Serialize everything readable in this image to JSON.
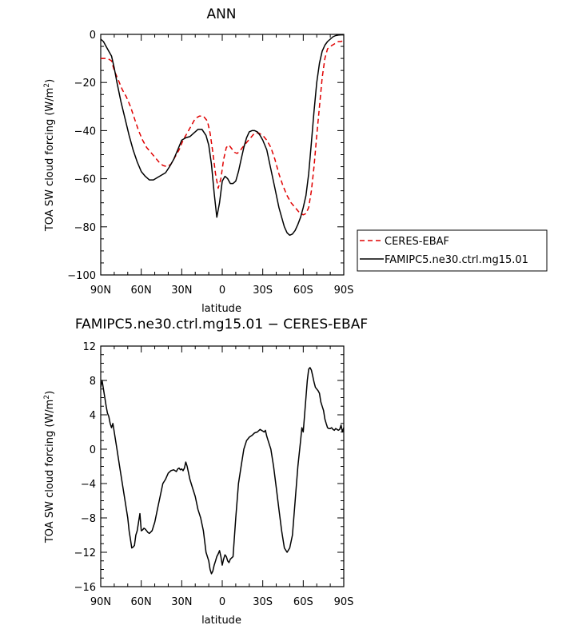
{
  "chart_data": [
    {
      "type": "line",
      "title": "ANN",
      "xlabel": "latitude",
      "ylabel": "TOA SW cloud forcing (W/m²)",
      "ylabel_main": "TOA SW cloud forcing (W/m",
      "ylabel_sup": "2",
      "ylabel_end": ")",
      "xlim": [
        90,
        -90
      ],
      "ylim": [
        -100,
        0
      ],
      "xticks": [
        90,
        60,
        30,
        0,
        -30,
        -60,
        -90
      ],
      "xtick_labels": [
        "90N",
        "60N",
        "30N",
        "0",
        "30S",
        "60S",
        "90S"
      ],
      "yticks": [
        0,
        -20,
        -40,
        -60,
        -80,
        -100
      ],
      "ytick_labels": [
        "0",
        "−20",
        "−40",
        "−60",
        "−80",
        "−100"
      ],
      "legend": {
        "placement": "right",
        "boxed": true
      },
      "series": [
        {
          "name": "CERES-EBAF",
          "color": "#e00000",
          "dash": "dashed",
          "x": [
            90,
            88,
            85,
            82,
            80,
            77,
            74,
            71,
            68,
            65,
            62,
            59,
            56,
            53,
            50,
            47,
            44,
            41,
            38,
            35,
            32,
            29,
            26,
            23,
            20,
            17,
            14,
            11,
            9,
            7,
            5,
            3,
            1,
            -1,
            -3,
            -5,
            -7,
            -9,
            -11,
            -13,
            -15,
            -18,
            -21,
            -24,
            -27,
            -30,
            -33,
            -36,
            -39,
            -42,
            -45,
            -48,
            -51,
            -54,
            -57,
            -60,
            -62,
            -64,
            -66,
            -68,
            -70,
            -72,
            -74,
            -76,
            -78,
            -80,
            -83,
            -86,
            -88,
            -90
          ],
          "y": [
            -10,
            -10,
            -10,
            -11,
            -15,
            -19,
            -23,
            -26,
            -30,
            -35,
            -40,
            -44,
            -47,
            -49,
            -51,
            -53,
            -54.5,
            -55,
            -54,
            -51,
            -48,
            -44,
            -41,
            -38,
            -35,
            -34,
            -34,
            -36,
            -41,
            -49,
            -58,
            -64,
            -60,
            -52,
            -47,
            -46,
            -47.5,
            -49,
            -49.5,
            -48.5,
            -47,
            -45,
            -43,
            -41,
            -41,
            -42,
            -44,
            -47,
            -52,
            -58,
            -63,
            -67,
            -70,
            -72,
            -74,
            -75,
            -74.5,
            -72,
            -65,
            -55,
            -42,
            -30,
            -18,
            -10,
            -6,
            -5,
            -4,
            -3,
            -3,
            -2.5
          ]
        },
        {
          "name": "FAMIPC5.ne30.ctrl.mg15.01",
          "color": "#000000",
          "dash": "solid",
          "x": [
            90,
            88,
            85,
            82,
            80,
            78,
            75,
            72,
            69,
            66,
            63,
            60,
            57,
            54,
            51,
            48,
            45,
            42,
            39,
            36,
            33,
            30,
            27,
            24,
            21,
            18,
            15,
            12,
            10,
            8,
            6,
            4,
            2,
            0,
            -2,
            -4,
            -6,
            -8,
            -10,
            -12,
            -14,
            -16,
            -18,
            -20,
            -22,
            -24,
            -26,
            -28,
            -30,
            -33,
            -36,
            -39,
            -42,
            -44,
            -46,
            -48,
            -50,
            -52,
            -54,
            -56,
            -58,
            -60,
            -62,
            -64,
            -66,
            -68,
            -70,
            -72,
            -74,
            -76,
            -78,
            -80,
            -82,
            -84,
            -86,
            -88,
            -90
          ],
          "y": [
            -2,
            -3,
            -6,
            -9,
            -14,
            -20,
            -28,
            -35,
            -42,
            -48,
            -53,
            -57,
            -59,
            -60.5,
            -60.5,
            -59.5,
            -58.5,
            -57.5,
            -55,
            -52,
            -48,
            -44,
            -43,
            -42.5,
            -41,
            -39.5,
            -39.5,
            -42,
            -46,
            -54,
            -66,
            -76,
            -70,
            -61,
            -59,
            -60,
            -62,
            -62,
            -61,
            -57,
            -52,
            -47,
            -43,
            -40.5,
            -40,
            -40,
            -40.5,
            -42,
            -44,
            -48,
            -56,
            -64,
            -72,
            -76,
            -80,
            -82.5,
            -83.5,
            -83,
            -81.5,
            -79,
            -76,
            -72,
            -67,
            -58,
            -45,
            -32,
            -20,
            -12,
            -7,
            -4.5,
            -3,
            -2,
            -1,
            -0.5,
            -0.3,
            -0.2,
            -0.2
          ]
        }
      ]
    },
    {
      "type": "line",
      "title": "FAMIPC5.ne30.ctrl.mg15.01 − CERES-EBAF",
      "xlabel": "latitude",
      "ylabel": "TOA SW cloud forcing (W/m²)",
      "ylabel_main": "TOA SW cloud forcing (W/m",
      "ylabel_sup": "2",
      "ylabel_end": ")",
      "xlim": [
        90,
        -90
      ],
      "ylim": [
        -16,
        12
      ],
      "xticks": [
        90,
        60,
        30,
        0,
        -30,
        -60,
        -90
      ],
      "xtick_labels": [
        "90N",
        "60N",
        "30N",
        "0",
        "30S",
        "60S",
        "90S"
      ],
      "yticks": [
        12,
        8,
        4,
        0,
        -4,
        -8,
        -12,
        -16
      ],
      "ytick_labels": [
        "12",
        "8",
        "4",
        "0",
        "−4",
        "−8",
        "−12",
        "−16"
      ],
      "series": [
        {
          "name": "",
          "color": "#000000",
          "dash": "solid",
          "x": [
            90,
            89,
            88,
            87,
            86,
            85,
            84,
            83,
            82,
            81,
            80,
            79,
            78,
            76,
            74,
            72,
            70,
            69,
            68,
            67,
            66,
            65,
            64,
            63,
            62,
            61,
            60,
            59,
            58,
            57,
            56,
            55,
            54,
            52,
            50,
            48,
            46,
            44,
            42,
            40,
            38,
            36,
            34,
            33,
            32,
            31,
            30,
            29,
            28,
            27,
            26,
            24,
            22,
            20,
            18,
            16,
            14,
            12,
            10,
            9,
            8,
            7,
            6,
            5,
            4,
            3,
            2,
            1,
            0,
            -1,
            -2,
            -3,
            -4,
            -5,
            -6,
            -8,
            -10,
            -12,
            -14,
            -16,
            -18,
            -20,
            -22,
            -24,
            -26,
            -28,
            -30,
            -31,
            -32,
            -33,
            -34,
            -36,
            -38,
            -40,
            -42,
            -44,
            -46,
            -48,
            -50,
            -52,
            -54,
            -56,
            -58,
            -59,
            -60,
            -61,
            -62,
            -63,
            -64,
            -65,
            -66,
            -67,
            -68,
            -69,
            -70,
            -71,
            -72,
            -73,
            -74,
            -75,
            -76,
            -77,
            -78,
            -79,
            -80,
            -81,
            -82,
            -83,
            -84,
            -85,
            -86,
            -87,
            -88,
            -89,
            -90
          ],
          "y": [
            7.2,
            8.0,
            7.0,
            6.0,
            5.0,
            4.2,
            3.8,
            3.0,
            2.5,
            3.0,
            2.0,
            1.0,
            0,
            -2,
            -4,
            -6,
            -8,
            -9.5,
            -10.5,
            -11.5,
            -11.4,
            -11.2,
            -10,
            -9.5,
            -8.5,
            -7.5,
            -9.5,
            -9.4,
            -9.2,
            -9.3,
            -9.5,
            -9.7,
            -9.8,
            -9.5,
            -8.5,
            -7.0,
            -5.5,
            -4.0,
            -3.5,
            -2.8,
            -2.5,
            -2.4,
            -2.6,
            -2.3,
            -2.2,
            -2.4,
            -2.3,
            -2.5,
            -2.2,
            -1.5,
            -2.0,
            -3.5,
            -4.5,
            -5.5,
            -7.0,
            -8.0,
            -9.5,
            -12.0,
            -13.0,
            -14.0,
            -14.5,
            -14.2,
            -13.5,
            -13.0,
            -12.5,
            -12.2,
            -11.8,
            -12.5,
            -13.5,
            -12.8,
            -12.3,
            -12.5,
            -13.0,
            -13.2,
            -12.8,
            -12.5,
            -8.0,
            -4.0,
            -2.0,
            0,
            1.0,
            1.4,
            1.6,
            1.9,
            2.0,
            2.3,
            2.1,
            2.0,
            2.2,
            1.5,
            1.0,
            0,
            -2.0,
            -4.5,
            -7.0,
            -9.5,
            -11.5,
            -12.0,
            -11.5,
            -10.0,
            -6.0,
            -2.0,
            1.0,
            2.5,
            2.0,
            4.0,
            6.0,
            8.0,
            9.3,
            9.5,
            9.2,
            8.5,
            7.8,
            7.2,
            7.0,
            6.8,
            6.5,
            5.5,
            5.0,
            4.5,
            3.5,
            3.0,
            2.5,
            2.4,
            2.4,
            2.5,
            2.3,
            2.2,
            2.4,
            2.3,
            2.2,
            2.3,
            2.8,
            2.0,
            2.5
          ]
        }
      ]
    }
  ]
}
